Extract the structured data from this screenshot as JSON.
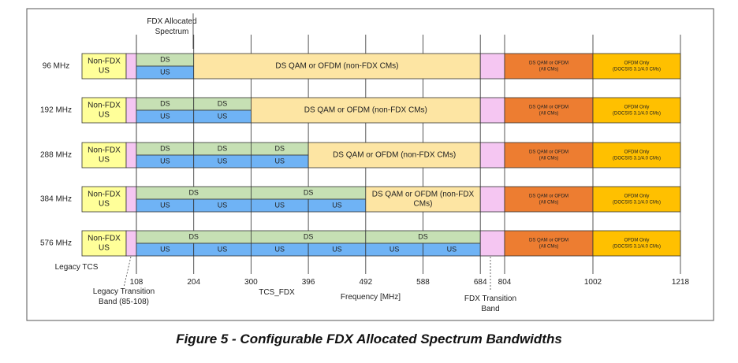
{
  "header": {
    "fdx_allocated_line1": "FDX Allocated",
    "fdx_allocated_line2": "Spectrum"
  },
  "rows": [
    {
      "label": "96 MHz",
      "ds": [
        {
          "from": 108,
          "to": 204,
          "text": "DS"
        }
      ],
      "us": [
        {
          "from": 108,
          "to": 204,
          "text": "US"
        }
      ],
      "ds_qam": {
        "from": 204,
        "to": 684,
        "lines": [
          "DS QAM or OFDM (non-FDX CMs)"
        ]
      }
    },
    {
      "label": "192 MHz",
      "ds": [
        {
          "from": 108,
          "to": 204,
          "text": "DS"
        },
        {
          "from": 204,
          "to": 300,
          "text": "DS"
        }
      ],
      "us": [
        {
          "from": 108,
          "to": 204,
          "text": "US"
        },
        {
          "from": 204,
          "to": 300,
          "text": "US"
        }
      ],
      "ds_qam": {
        "from": 300,
        "to": 684,
        "lines": [
          "DS QAM or OFDM (non-FDX CMs)"
        ]
      }
    },
    {
      "label": "288 MHz",
      "ds": [
        {
          "from": 108,
          "to": 204,
          "text": "DS"
        },
        {
          "from": 204,
          "to": 300,
          "text": "DS"
        },
        {
          "from": 300,
          "to": 396,
          "text": "DS"
        }
      ],
      "us": [
        {
          "from": 108,
          "to": 204,
          "text": "US"
        },
        {
          "from": 204,
          "to": 300,
          "text": "US"
        },
        {
          "from": 300,
          "to": 396,
          "text": "US"
        }
      ],
      "ds_qam": {
        "from": 396,
        "to": 684,
        "lines": [
          "DS QAM or OFDM (non-FDX CMs)"
        ]
      }
    },
    {
      "label": "384 MHz",
      "ds": [
        {
          "from": 108,
          "to": 300,
          "text": "DS"
        },
        {
          "from": 300,
          "to": 492,
          "text": "DS"
        }
      ],
      "us": [
        {
          "from": 108,
          "to": 204,
          "text": "US"
        },
        {
          "from": 204,
          "to": 300,
          "text": "US"
        },
        {
          "from": 300,
          "to": 396,
          "text": "US"
        },
        {
          "from": 396,
          "to": 492,
          "text": "US"
        }
      ],
      "ds_qam": {
        "from": 492,
        "to": 684,
        "lines": [
          "DS QAM or OFDM (non-FDX",
          "CMs)"
        ]
      }
    },
    {
      "label": "576 MHz",
      "ds": [
        {
          "from": 108,
          "to": 300,
          "text": "DS"
        },
        {
          "from": 300,
          "to": 492,
          "text": "DS"
        },
        {
          "from": 492,
          "to": 684,
          "text": "DS"
        }
      ],
      "us": [
        {
          "from": 108,
          "to": 204,
          "text": "US"
        },
        {
          "from": 204,
          "to": 300,
          "text": "US"
        },
        {
          "from": 300,
          "to": 396,
          "text": "US"
        },
        {
          "from": 396,
          "to": 492,
          "text": "US"
        },
        {
          "from": 492,
          "to": 588,
          "text": "US"
        },
        {
          "from": 588,
          "to": 684,
          "text": "US"
        }
      ],
      "ds_qam": null
    }
  ],
  "common_blocks": {
    "non_fdx": [
      "Non-FDX",
      "US"
    ],
    "ds_all": [
      "DS QAM or OFDM",
      "(All CMs)"
    ],
    "ofdm_only": [
      "OFDM Only",
      "(DOCSIS 3.1/4.0 CMs)"
    ]
  },
  "ticks": [
    108,
    204,
    300,
    396,
    492,
    588,
    684,
    804,
    1002,
    1218
  ],
  "labels": {
    "legacy_tcs": "Legacy TCS",
    "legacy_transition": [
      "Legacy Transition",
      "Band (85-108)"
    ],
    "tcs_fdx": "TCS_FDX",
    "frequency": "Frequency [MHz]",
    "fdx_transition": [
      "FDX Transition",
      "Band"
    ]
  },
  "colors": {
    "non_fdx": "#FFFF99",
    "transition": "#F5C6F2",
    "ds": "#C6E0B4",
    "us": "#6FB3F5",
    "ds_qam": "#FDE5A3",
    "ds_all": "#ED7D31",
    "ofdm_only": "#FFC000",
    "border": "#333333"
  },
  "caption": "Figure 5 - Configurable FDX Allocated Spectrum Bandwidths"
}
